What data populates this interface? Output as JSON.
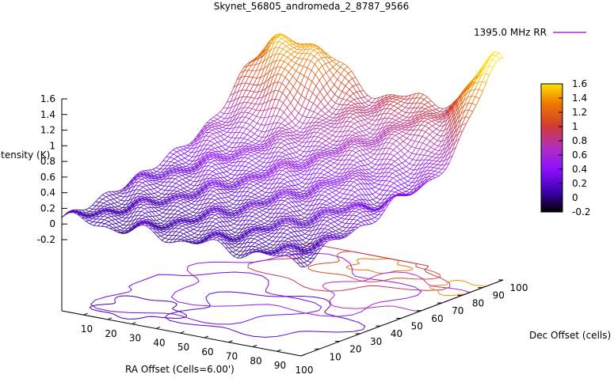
{
  "chart_data": {
    "type": "surface3d",
    "title": "Skynet_56805_andromeda_2_8787_9566",
    "legend": {
      "label": "1395.0 MHz RR",
      "position": "top-right"
    },
    "xlabel": "RA Offset (Cells=6.00')",
    "ylabel": "Dec Offset (cells)",
    "zlabel": "Intensity (K)",
    "x_ticks": [
      "10",
      "20",
      "30",
      "40",
      "50",
      "60",
      "70",
      "80",
      "90",
      "100"
    ],
    "y_ticks": [
      "10",
      "20",
      "30",
      "40",
      "50",
      "60",
      "70",
      "80",
      "90",
      "100"
    ],
    "z_ticks": [
      "-0.2",
      "0",
      "0.2",
      "0.4",
      "0.6",
      "0.8",
      "1",
      "1.2",
      "1.4",
      "1.6"
    ],
    "xlim": [
      1,
      100
    ],
    "ylim": [
      1,
      100
    ],
    "zlim": [
      -0.2,
      1.6
    ],
    "colorbar": {
      "ticks": [
        "-0.2",
        "0",
        "0.2",
        "0.4",
        "0.6",
        "0.8",
        "1",
        "1.2",
        "1.4",
        "1.6"
      ],
      "range": [
        -0.2,
        1.6
      ],
      "colors": [
        "#000000",
        "#3a00a8",
        "#8a10ff",
        "#b030c0",
        "#d03a30",
        "#f07a00",
        "#ffe000"
      ]
    },
    "surface_samples": [
      {
        "x": 10,
        "y": 100,
        "z": 1.55
      },
      {
        "x": 30,
        "y": 100,
        "z": 1.45
      },
      {
        "x": 60,
        "y": 100,
        "z": 1.05
      },
      {
        "x": 100,
        "y": 100,
        "z": 1.6
      },
      {
        "x": 5,
        "y": 30,
        "z": 0.1
      },
      {
        "x": 50,
        "y": 50,
        "z": 0.3
      },
      {
        "x": 100,
        "y": 60,
        "z": 0.6
      },
      {
        "x": 100,
        "y": 1,
        "z": 0.05
      }
    ],
    "contours": true,
    "grid": false
  }
}
